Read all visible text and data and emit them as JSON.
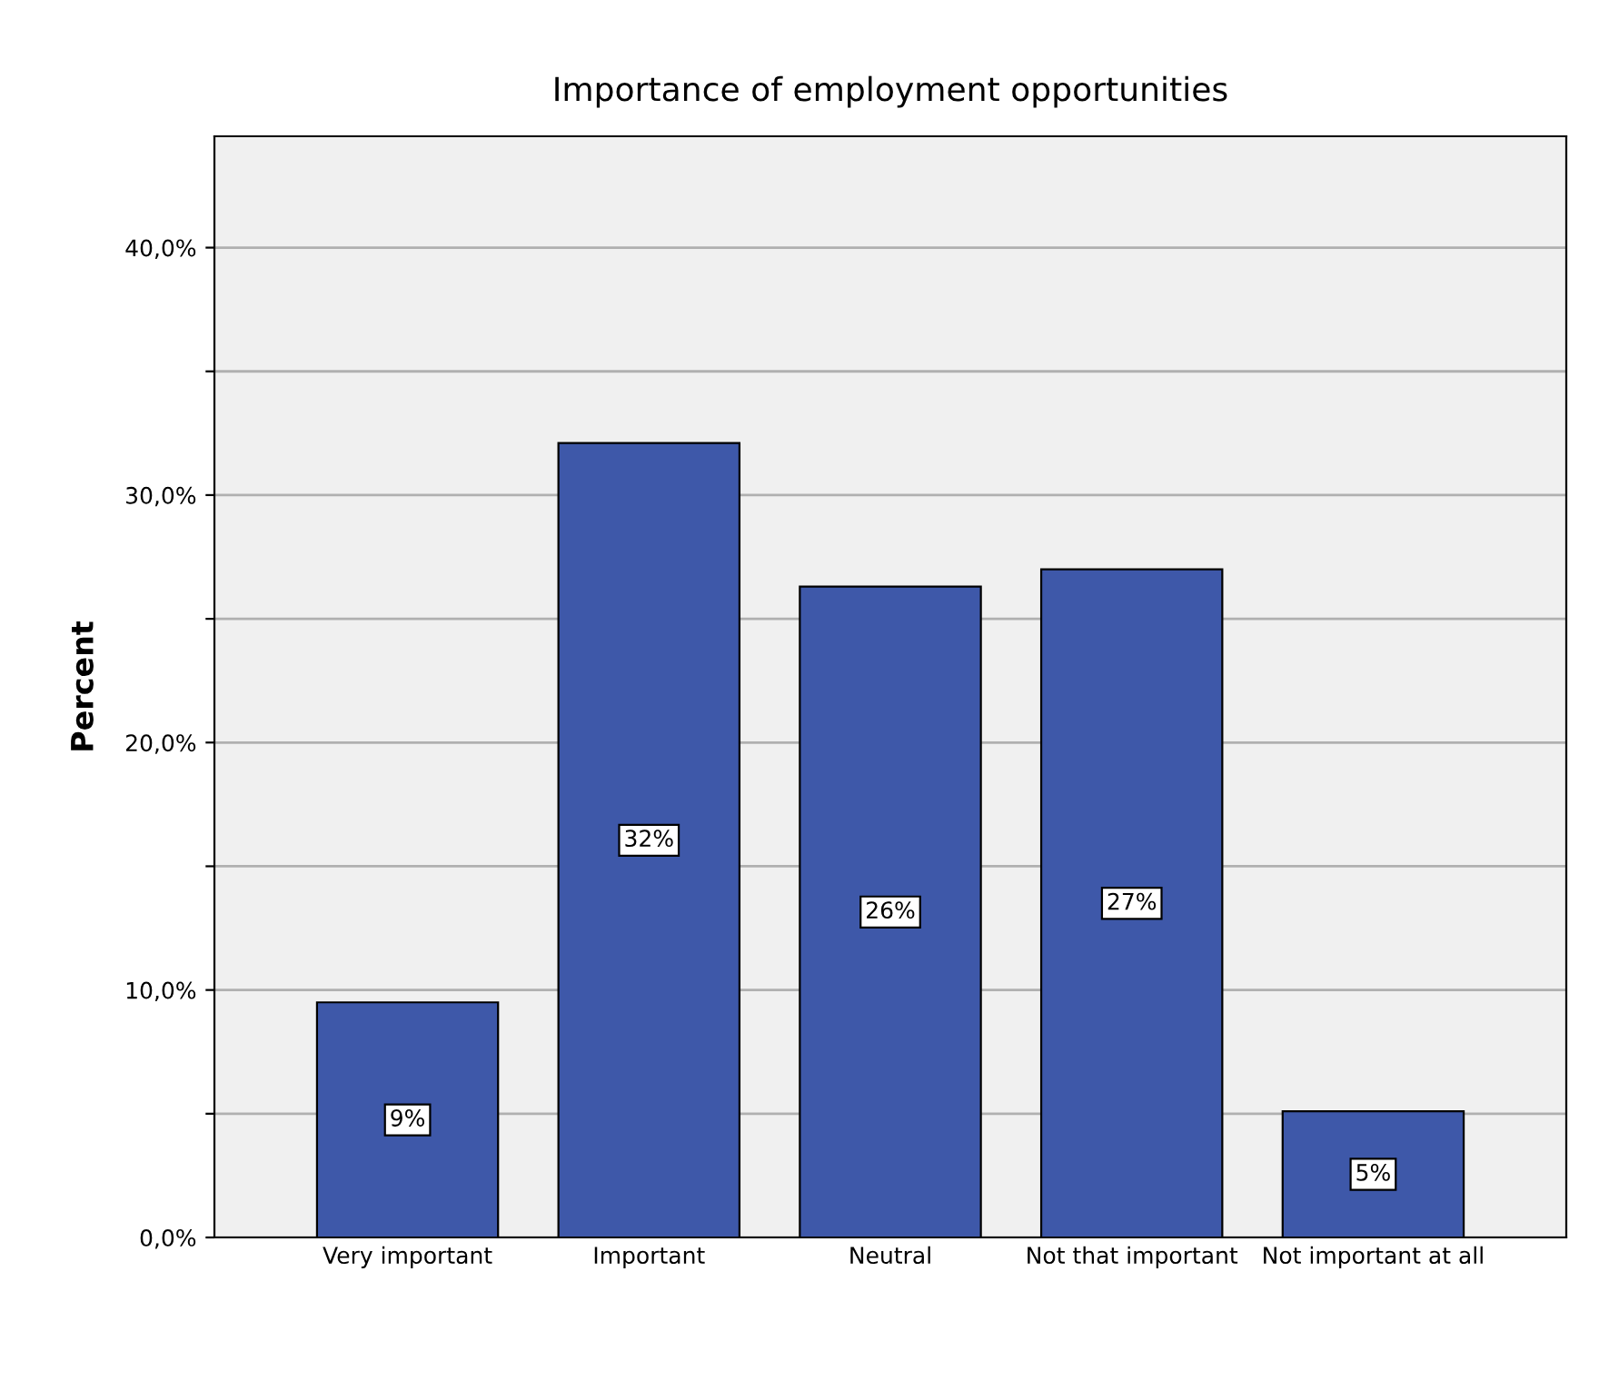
{
  "chart_data": {
    "type": "bar",
    "title": "Importance of employment opportunities",
    "ylabel": "Percent",
    "categories": [
      "Very important",
      "Important",
      "Neutral",
      "Not that important",
      "Not important at all"
    ],
    "values": [
      9.5,
      32.1,
      26.3,
      27.0,
      5.1
    ],
    "value_labels": [
      "9%",
      "32%",
      "26%",
      "27%",
      "5%"
    ],
    "color": "#3e58a9",
    "ylim": [
      0,
      44.5
    ],
    "yticks": [
      {
        "value": 0,
        "label": "0,0%"
      },
      {
        "value": 5,
        "label": null
      },
      {
        "value": 10,
        "label": "10,0%"
      },
      {
        "value": 15,
        "label": null
      },
      {
        "value": 20,
        "label": "20,0%"
      },
      {
        "value": 25,
        "label": null
      },
      {
        "value": 30,
        "label": "30,0%"
      },
      {
        "value": 35,
        "label": null
      },
      {
        "value": 40,
        "label": "40,0%"
      }
    ],
    "grid": "y"
  }
}
